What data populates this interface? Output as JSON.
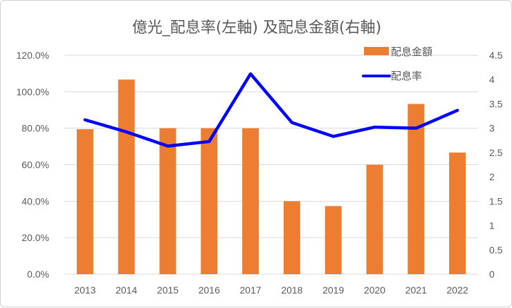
{
  "chart_data": {
    "type": "bar+line",
    "title": "億光_配息率(左軸) 及配息金額(右軸)",
    "categories": [
      "2013",
      "2014",
      "2015",
      "2016",
      "2017",
      "2018",
      "2019",
      "2020",
      "2021",
      "2022"
    ],
    "series": [
      {
        "name": "配息金額",
        "type": "bar",
        "axis": "right",
        "color": "#ED7D31",
        "values": [
          2.98,
          4.0,
          3.0,
          3.0,
          3.0,
          1.5,
          1.4,
          2.25,
          3.5,
          2.5
        ]
      },
      {
        "name": "配息率",
        "type": "line",
        "axis": "left",
        "color": "#0000FF",
        "values": [
          84.6,
          78.0,
          70.2,
          72.7,
          109.8,
          83.1,
          75.5,
          80.6,
          80.0,
          89.8
        ]
      }
    ],
    "left_axis": {
      "range": [
        0,
        120
      ],
      "ticks": [
        "0.0%",
        "20.0%",
        "40.0%",
        "60.0%",
        "80.0%",
        "100.0%",
        "120.0%"
      ]
    },
    "right_axis": {
      "range": [
        0,
        4.5
      ],
      "ticks": [
        "0",
        "0.5",
        "1",
        "1.5",
        "2",
        "2.5",
        "3",
        "3.5",
        "4",
        "4.5"
      ]
    },
    "grid": true,
    "legend": "top-right"
  }
}
